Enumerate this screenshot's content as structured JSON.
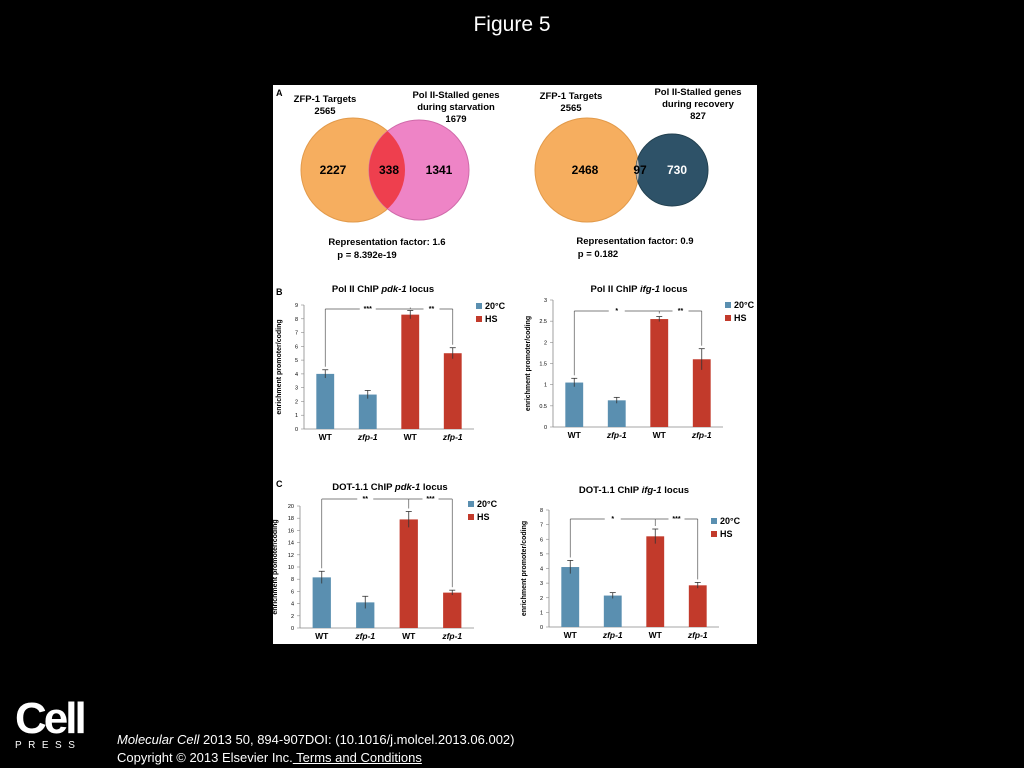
{
  "page": {
    "title": "Figure 5",
    "journal": "Molecular Cell",
    "citation_rest": " 2013 50, 894-907DOI: (10.1016/j.molcel.2013.06.002)",
    "copyright": "Copyright © 2013 Elsevier Inc.",
    "terms_link": " Terms and Conditions",
    "logo_word": "Cell",
    "logo_sub": "PRESS"
  },
  "panels": {
    "A": "A",
    "B": "B",
    "C": "C"
  },
  "colors": {
    "orange": "#F6AE5F",
    "pink": "#EE84C6",
    "overlap_red": "#EE3F4E",
    "navy": "#2E5268",
    "overlap_grey": "#C8BBAE",
    "wt_blue": "#5A8FB0",
    "hs_red": "#C23A2B"
  },
  "venn": [
    {
      "left_title": "ZFP-1 Targets",
      "left_total": "2565",
      "right_title_1": "Pol II-Stalled genes",
      "right_title_2": "during starvation",
      "right_total": "1679",
      "left_only": "2227",
      "overlap": "338",
      "right_only": "1341",
      "rf": "Representation factor: 1.6",
      "p": "p =  8.392e-19"
    },
    {
      "left_title": "ZFP-1 Targets",
      "left_total": "2565",
      "right_title_1": "Pol II-Stalled genes",
      "right_title_2": "during recovery",
      "right_total": "827",
      "left_only": "2468",
      "overlap": "97",
      "right_only": "730",
      "rf": "Representation factor: 0.9",
      "p": "p = 0.182"
    }
  ],
  "chart_data": [
    {
      "type": "bar",
      "title_pre": "Pol II ChIP ",
      "title_gene": "pdk-1",
      "title_post": " locus",
      "ylabel": "enrichment promoter/coding",
      "ylim": [
        0,
        9
      ],
      "yticks": [
        "0",
        "1",
        "2",
        "3",
        "4",
        "5",
        "6",
        "7",
        "8",
        "9"
      ],
      "categories": [
        "WT",
        "zfp-1",
        "WT",
        "zfp-1"
      ],
      "values": [
        4.0,
        2.5,
        8.3,
        5.5
      ],
      "errors": [
        0.3,
        0.3,
        0.3,
        0.4
      ],
      "bar_series": [
        "20°C",
        "20°C",
        "HS",
        "HS"
      ],
      "legend": [
        "20°C",
        "HS"
      ],
      "sig_left": "***",
      "sig_right": "**"
    },
    {
      "type": "bar",
      "title_pre": "Pol II ChIP ",
      "title_gene": "ifg-1",
      "title_post": " locus",
      "ylabel": "enrichment promoter/coding",
      "ylim": [
        0,
        3
      ],
      "yticks": [
        "0",
        "0.5",
        "1",
        "1.5",
        "2",
        "2.5",
        "3"
      ],
      "categories": [
        "WT",
        "zfp-1",
        "WT",
        "zfp-1"
      ],
      "values": [
        1.05,
        0.63,
        2.55,
        1.6
      ],
      "errors": [
        0.1,
        0.07,
        0.06,
        0.25
      ],
      "bar_series": [
        "20°C",
        "20°C",
        "HS",
        "HS"
      ],
      "legend": [
        "20°C",
        "HS"
      ],
      "sig_left": "*",
      "sig_right": "**"
    },
    {
      "type": "bar",
      "title_pre": "DOT-1.1 ChIP ",
      "title_gene": "pdk-1",
      "title_post": " locus",
      "ylabel": "enrichment promoter/coding",
      "ylim": [
        0,
        20
      ],
      "yticks": [
        "0",
        "2",
        "4",
        "6",
        "8",
        "10",
        "12",
        "14",
        "16",
        "18",
        "20"
      ],
      "categories": [
        "WT",
        "zfp-1",
        "WT",
        "zfp-1"
      ],
      "values": [
        8.3,
        4.2,
        17.8,
        5.8
      ],
      "errors": [
        1.0,
        1.0,
        1.3,
        0.4
      ],
      "bar_series": [
        "20°C",
        "20°C",
        "HS",
        "HS"
      ],
      "legend": [
        "20°C",
        "HS"
      ],
      "sig_left": "**",
      "sig_right": "***"
    },
    {
      "type": "bar",
      "title_pre": "DOT-1.1 ChIP ",
      "title_gene": "ifg-1",
      "title_post": " locus",
      "ylabel": "enrichment promoter/coding",
      "ylim": [
        0,
        8
      ],
      "yticks": [
        "0",
        "1",
        "2",
        "3",
        "4",
        "5",
        "6",
        "7",
        "8"
      ],
      "categories": [
        "WT",
        "zfp-1",
        "WT",
        "zfp-1"
      ],
      "values": [
        4.1,
        2.15,
        6.2,
        2.85
      ],
      "errors": [
        0.45,
        0.2,
        0.5,
        0.2
      ],
      "bar_series": [
        "20°C",
        "20°C",
        "HS",
        "HS"
      ],
      "legend": [
        "20°C",
        "HS"
      ],
      "sig_left": "*",
      "sig_right": "***"
    }
  ]
}
